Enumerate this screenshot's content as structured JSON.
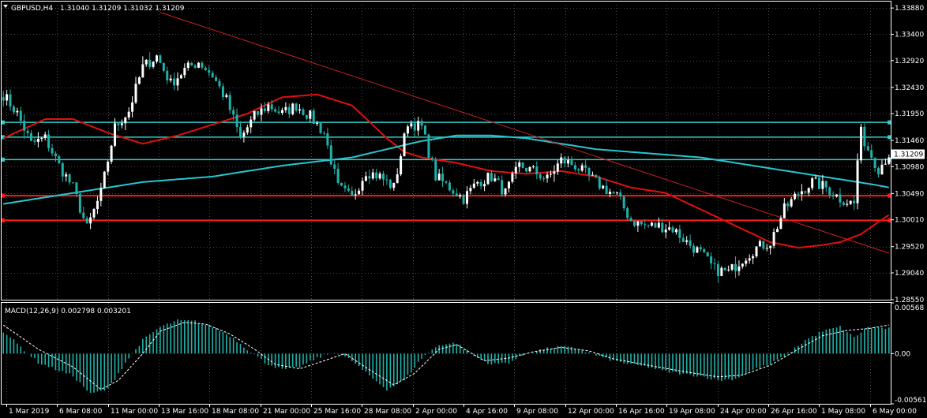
{
  "header": {
    "symbol": "GBPUSD,H4",
    "ohlc": "1.31040 1.31209 1.31032 1.31209"
  },
  "colors": {
    "background": "#000000",
    "grid": "#4a4a4a",
    "bull": "#ffffff",
    "bear": "#20b2aa",
    "ma_fast": "#e01010",
    "ma_slow": "#26c6d0",
    "trendline": "#cc2020",
    "support": "#ff1a1a",
    "resistance": "#33cccc",
    "histogram": "#20b2aa",
    "signal": "#ffffff",
    "price_badge": "#ffffff"
  },
  "chart_data": [
    {
      "type": "candlestick",
      "symbol": "GBPUSD",
      "timeframe": "H4",
      "ylim": [
        1.2855,
        1.3394
      ],
      "yticks": [
        "1.33880",
        "1.33400",
        "1.32920",
        "1.32430",
        "1.31950",
        "1.31460",
        "1.30980",
        "1.30490",
        "1.30010",
        "1.29520",
        "1.29040",
        "1.28550"
      ],
      "current_price": "1.31209",
      "xticks": [
        "1 Mar 2019",
        "6 Mar 08:00",
        "11 Mar 00:00",
        "13 Mar 16:00",
        "18 Mar 08:00",
        "21 Mar 00:00",
        "25 Mar 16:00",
        "28 Mar 08:00",
        "2 Apr 00:00",
        "4 Apr 16:00",
        "9 Apr 08:00",
        "12 Apr 00:00",
        "16 Apr 16:00",
        "19 Apr 08:00",
        "24 Apr 00:00",
        "26 Apr 16:00",
        "1 May 08:00",
        "6 May 00:00"
      ],
      "close_anchors": [
        [
          0,
          1.323
        ],
        [
          4,
          1.3195
        ],
        [
          8,
          1.314
        ],
        [
          12,
          1.315
        ],
        [
          16,
          1.31
        ],
        [
          20,
          1.306
        ],
        [
          24,
          1.2985
        ],
        [
          28,
          1.305
        ],
        [
          32,
          1.317
        ],
        [
          36,
          1.32
        ],
        [
          40,
          1.328
        ],
        [
          44,
          1.33
        ],
        [
          48,
          1.325
        ],
        [
          52,
          1.3275
        ],
        [
          56,
          1.329
        ],
        [
          60,
          1.3265
        ],
        [
          64,
          1.322
        ],
        [
          68,
          1.315
        ],
        [
          72,
          1.319
        ],
        [
          76,
          1.321
        ],
        [
          80,
          1.3195
        ],
        [
          84,
          1.321
        ],
        [
          88,
          1.319
        ],
        [
          92,
          1.316
        ],
        [
          96,
          1.306
        ],
        [
          100,
          1.304
        ],
        [
          104,
          1.309
        ],
        [
          108,
          1.308
        ],
        [
          112,
          1.306
        ],
        [
          116,
          1.318
        ],
        [
          120,
          1.317
        ],
        [
          124,
          1.308
        ],
        [
          128,
          1.306
        ],
        [
          132,
          1.304
        ],
        [
          136,
          1.307
        ],
        [
          140,
          1.308
        ],
        [
          144,
          1.305
        ],
        [
          148,
          1.31
        ],
        [
          152,
          1.309
        ],
        [
          156,
          1.3075
        ],
        [
          160,
          1.311
        ],
        [
          164,
          1.31
        ],
        [
          168,
          1.308
        ],
        [
          172,
          1.306
        ],
        [
          176,
          1.3045
        ],
        [
          180,
          1.3
        ],
        [
          184,
          1.299
        ],
        [
          188,
          1.299
        ],
        [
          192,
          1.2985
        ],
        [
          196,
          1.296
        ],
        [
          200,
          1.294
        ],
        [
          204,
          1.291
        ],
        [
          208,
          1.2905
        ],
        [
          212,
          1.293
        ],
        [
          216,
          1.295
        ],
        [
          220,
          1.296
        ],
        [
          224,
          1.302
        ],
        [
          228,
          1.305
        ],
        [
          232,
          1.307
        ],
        [
          236,
          1.306
        ],
        [
          240,
          1.304
        ],
        [
          244,
          1.303
        ],
        [
          245,
          1.311
        ],
        [
          246,
          1.316
        ],
        [
          248,
          1.313
        ],
        [
          251,
          1.3095
        ],
        [
          254,
          1.3121
        ]
      ],
      "bar_count": 255,
      "horizontal_levels": [
        {
          "price": 1.3179,
          "role": "resistance"
        },
        {
          "price": 1.3152,
          "role": "resistance"
        },
        {
          "price": 1.3111,
          "role": "resistance"
        },
        {
          "price": 1.3045,
          "role": "support"
        },
        {
          "price": 1.3,
          "role": "support"
        }
      ],
      "trendline": {
        "from": [
          45,
          1.338
        ],
        "to": [
          254,
          1.294
        ]
      },
      "moving_averages": [
        {
          "role": "fast",
          "anchors": [
            [
              0,
              1.315
            ],
            [
              12,
              1.3185
            ],
            [
              20,
              1.3185
            ],
            [
              30,
              1.316
            ],
            [
              40,
              1.314
            ],
            [
              50,
              1.3155
            ],
            [
              60,
              1.3175
            ],
            [
              70,
              1.3195
            ],
            [
              80,
              1.3225
            ],
            [
              90,
              1.323
            ],
            [
              100,
              1.321
            ],
            [
              110,
              1.315
            ],
            [
              115,
              1.3125
            ],
            [
              120,
              1.3115
            ],
            [
              130,
              1.3105
            ],
            [
              140,
              1.309
            ],
            [
              150,
              1.3085
            ],
            [
              160,
              1.309
            ],
            [
              170,
              1.308
            ],
            [
              180,
              1.306
            ],
            [
              190,
              1.305
            ],
            [
              200,
              1.302
            ],
            [
              210,
              1.299
            ],
            [
              220,
              1.296
            ],
            [
              228,
              1.295
            ],
            [
              235,
              1.2955
            ],
            [
              240,
              1.296
            ],
            [
              246,
              1.2975
            ],
            [
              254,
              1.301
            ]
          ]
        },
        {
          "role": "slow",
          "anchors": [
            [
              0,
              1.303
            ],
            [
              20,
              1.305
            ],
            [
              40,
              1.307
            ],
            [
              60,
              1.308
            ],
            [
              80,
              1.31
            ],
            [
              100,
              1.3115
            ],
            [
              110,
              1.313
            ],
            [
              120,
              1.3145
            ],
            [
              130,
              1.3155
            ],
            [
              140,
              1.3155
            ],
            [
              150,
              1.315
            ],
            [
              160,
              1.314
            ],
            [
              170,
              1.313
            ],
            [
              180,
              1.3125
            ],
            [
              190,
              1.312
            ],
            [
              200,
              1.3115
            ],
            [
              210,
              1.3105
            ],
            [
              220,
              1.3095
            ],
            [
              230,
              1.3085
            ],
            [
              240,
              1.3075
            ],
            [
              250,
              1.3065
            ],
            [
              254,
              1.306
            ]
          ]
        }
      ]
    },
    {
      "type": "bar",
      "indicator": "MACD(12,26,9)",
      "legend_text": "MACD(12,26,9) 0.002798 0.003201",
      "ylim": [
        -0.005617,
        0.00568
      ],
      "yticks": [
        "0.00568",
        "0.00",
        "-0.005617"
      ],
      "histogram_anchors": [
        [
          0,
          0.0025
        ],
        [
          10,
          -0.001
        ],
        [
          20,
          -0.0025
        ],
        [
          25,
          -0.0045
        ],
        [
          30,
          -0.004
        ],
        [
          35,
          -0.001
        ],
        [
          40,
          0.0015
        ],
        [
          45,
          0.003
        ],
        [
          50,
          0.0037
        ],
        [
          55,
          0.0036
        ],
        [
          60,
          0.003
        ],
        [
          65,
          0.002
        ],
        [
          70,
          0.0005
        ],
        [
          75,
          -0.001
        ],
        [
          80,
          -0.0018
        ],
        [
          85,
          -0.0015
        ],
        [
          90,
          -0.0005
        ],
        [
          95,
          0.0002
        ],
        [
          100,
          -0.0008
        ],
        [
          105,
          -0.0025
        ],
        [
          110,
          -0.004
        ],
        [
          115,
          -0.003
        ],
        [
          120,
          -0.0005
        ],
        [
          125,
          0.001
        ],
        [
          130,
          0.0012
        ],
        [
          135,
          -0.0003
        ],
        [
          140,
          -0.0012
        ],
        [
          145,
          -0.001
        ],
        [
          150,
          0.0
        ],
        [
          155,
          0.0005
        ],
        [
          160,
          0.0008
        ],
        [
          165,
          0.0005
        ],
        [
          170,
          -0.0002
        ],
        [
          175,
          -0.0008
        ],
        [
          180,
          -0.0012
        ],
        [
          185,
          -0.0015
        ],
        [
          190,
          -0.002
        ],
        [
          195,
          -0.0023
        ],
        [
          200,
          -0.0025
        ],
        [
          205,
          -0.003
        ],
        [
          210,
          -0.0028
        ],
        [
          215,
          -0.0018
        ],
        [
          220,
          -0.0012
        ],
        [
          225,
          0.0
        ],
        [
          230,
          0.0015
        ],
        [
          235,
          0.0025
        ],
        [
          240,
          0.003
        ],
        [
          244,
          0.0018
        ],
        [
          248,
          0.003
        ],
        [
          254,
          0.0028
        ]
      ],
      "signal_anchors": [
        [
          0,
          0.0032
        ],
        [
          10,
          0.0005
        ],
        [
          20,
          -0.0015
        ],
        [
          28,
          -0.004
        ],
        [
          33,
          -0.003
        ],
        [
          40,
          0.0
        ],
        [
          45,
          0.0025
        ],
        [
          52,
          0.0035
        ],
        [
          58,
          0.0033
        ],
        [
          65,
          0.0022
        ],
        [
          72,
          0.0005
        ],
        [
          78,
          -0.0012
        ],
        [
          85,
          -0.0017
        ],
        [
          92,
          -0.0008
        ],
        [
          98,
          0.0
        ],
        [
          105,
          -0.0018
        ],
        [
          112,
          -0.0035
        ],
        [
          118,
          -0.0022
        ],
        [
          125,
          0.0005
        ],
        [
          130,
          0.001
        ],
        [
          138,
          -0.0008
        ],
        [
          145,
          -0.0005
        ],
        [
          152,
          0.0002
        ],
        [
          160,
          0.0007
        ],
        [
          168,
          0.0003
        ],
        [
          175,
          -0.0006
        ],
        [
          185,
          -0.0013
        ],
        [
          195,
          -0.002
        ],
        [
          205,
          -0.0026
        ],
        [
          212,
          -0.0024
        ],
        [
          220,
          -0.0013
        ],
        [
          228,
          0.0005
        ],
        [
          235,
          0.002
        ],
        [
          242,
          0.0026
        ],
        [
          248,
          0.0028
        ],
        [
          254,
          0.0032
        ]
      ]
    }
  ]
}
